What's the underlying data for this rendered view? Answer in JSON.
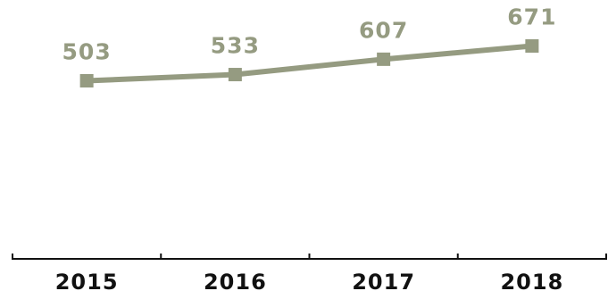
{
  "chart_data": {
    "type": "line",
    "categories": [
      "2015",
      "2016",
      "2017",
      "2018"
    ],
    "series": [
      {
        "values": [
          503,
          533,
          607,
          671
        ]
      }
    ],
    "data_labels": [
      "503",
      "533",
      "607",
      "671"
    ],
    "title": "",
    "xlabel": "",
    "ylabel": "",
    "grid": false,
    "legend": "none",
    "colors": {
      "line": "#959b81",
      "marker": "#959b81",
      "data_label": "#959b81",
      "axis": "#111111",
      "tick_label": "#111111"
    }
  }
}
